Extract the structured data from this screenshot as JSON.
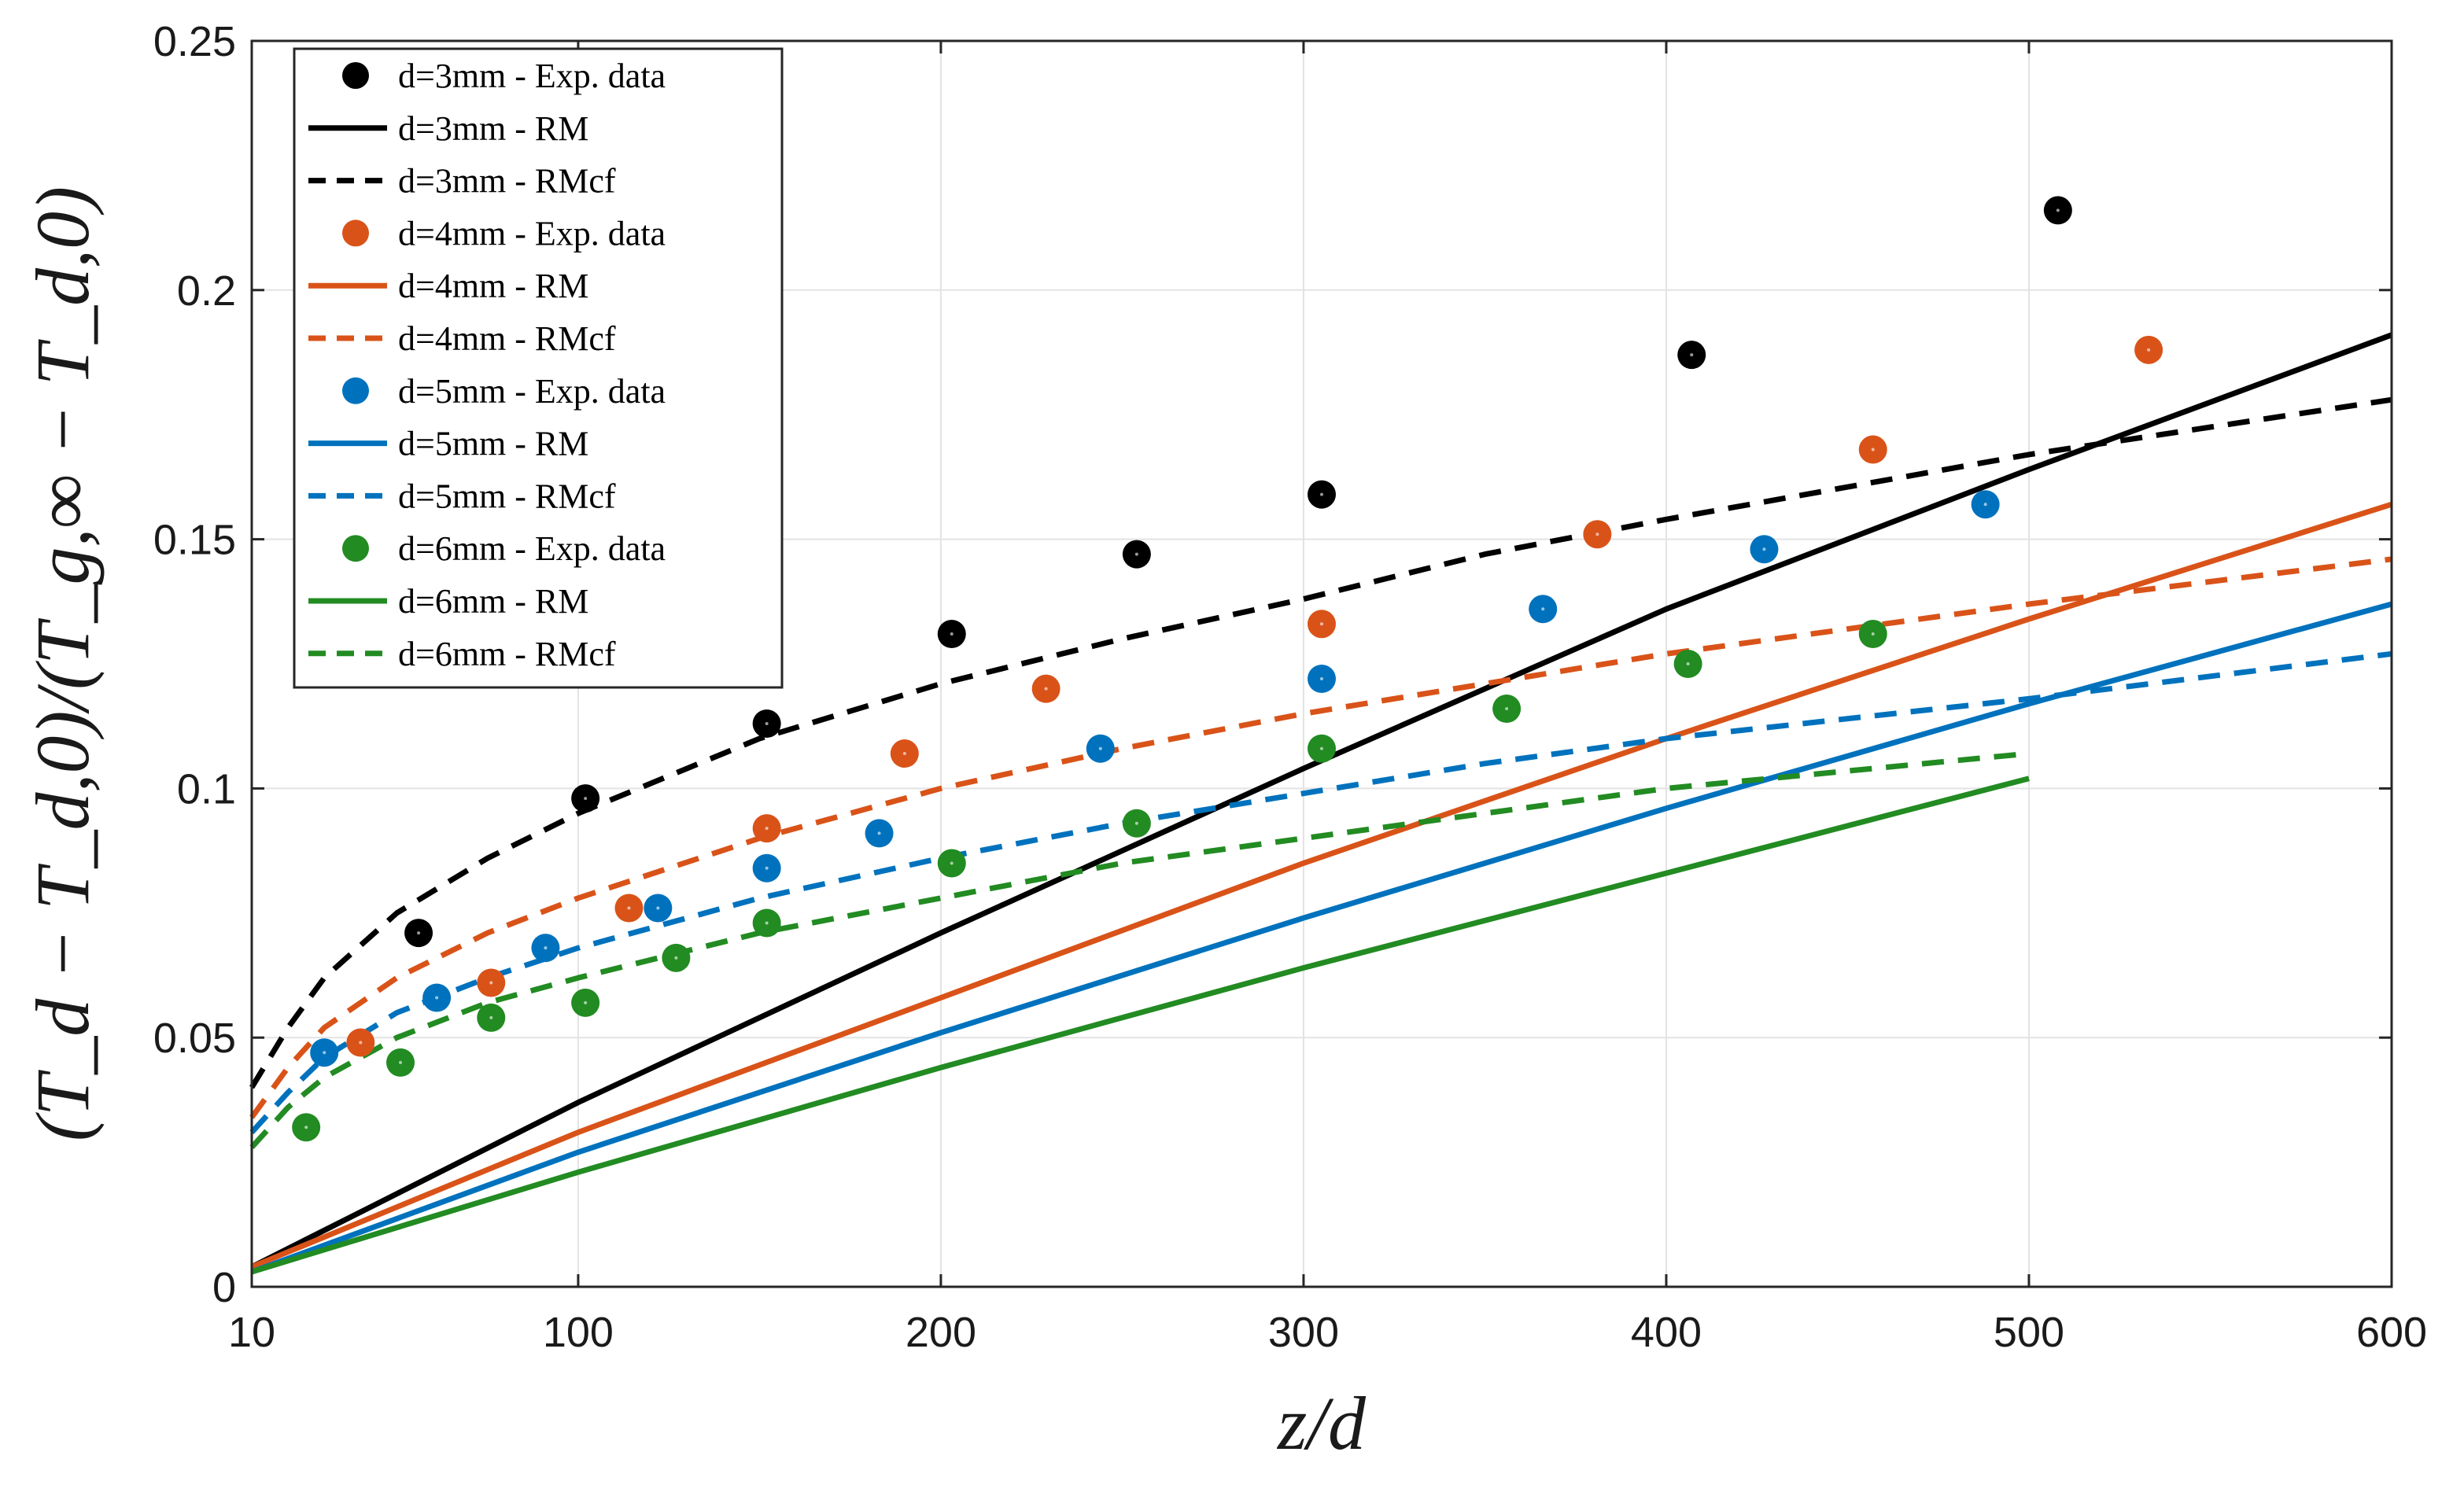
{
  "chart_data": {
    "type": "scatter",
    "title": "",
    "xlabel": "z/d",
    "ylabel": "(T_d − T_d,0)/(T_g,∞ − T_d,0)",
    "xlim": [
      10,
      600
    ],
    "ylim": [
      0,
      0.25
    ],
    "xticks": [
      10,
      100,
      200,
      300,
      400,
      500,
      600
    ],
    "yticks": [
      0,
      0.05,
      0.1,
      0.15,
      0.2,
      0.25
    ],
    "xtick_labels": [
      "10",
      "100",
      "200",
      "300",
      "400",
      "500",
      "600"
    ],
    "ytick_labels": [
      "0",
      "0.05",
      "0.1",
      "0.15",
      "0.2",
      "0.25"
    ],
    "grid": true,
    "legend_position": "top-left",
    "series": [
      {
        "name": "d=3mm - Exp. data",
        "kind": "scatter",
        "color": "#000000",
        "x": [
          56,
          102,
          152,
          203,
          254,
          305,
          407,
          508
        ],
        "y": [
          0.071,
          0.098,
          0.113,
          0.131,
          0.147,
          0.159,
          0.187,
          0.216
        ]
      },
      {
        "name": "d=3mm - RM",
        "kind": "line",
        "dash": "solid",
        "color": "#000000",
        "x": [
          10,
          100,
          200,
          300,
          400,
          500,
          600
        ],
        "y": [
          0.004,
          0.037,
          0.071,
          0.104,
          0.136,
          0.164,
          0.191
        ]
      },
      {
        "name": "d=3mm - RMcf",
        "kind": "line",
        "dash": "dashed",
        "color": "#000000",
        "x": [
          10,
          20,
          30,
          50,
          75,
          100,
          150,
          200,
          250,
          300,
          350,
          400,
          500,
          600
        ],
        "y": [
          0.04,
          0.052,
          0.062,
          0.075,
          0.086,
          0.095,
          0.11,
          0.121,
          0.13,
          0.138,
          0.147,
          0.154,
          0.167,
          0.178
        ]
      },
      {
        "name": "d=4mm - Exp. data",
        "kind": "scatter",
        "color": "#D95319",
        "x": [
          40,
          76,
          114,
          152,
          190,
          229,
          305,
          381,
          457,
          533
        ],
        "y": [
          0.049,
          0.061,
          0.076,
          0.092,
          0.107,
          0.12,
          0.133,
          0.151,
          0.168,
          0.188
        ]
      },
      {
        "name": "d=4mm - RM",
        "kind": "line",
        "dash": "solid",
        "color": "#D95319",
        "x": [
          10,
          100,
          200,
          300,
          400,
          500,
          600
        ],
        "y": [
          0.004,
          0.031,
          0.058,
          0.085,
          0.11,
          0.134,
          0.157
        ]
      },
      {
        "name": "d=4mm - RMcf",
        "kind": "line",
        "dash": "dashed",
        "color": "#D95319",
        "x": [
          10,
          20,
          30,
          50,
          75,
          100,
          150,
          200,
          250,
          300,
          350,
          400,
          500,
          600
        ],
        "y": [
          0.034,
          0.044,
          0.052,
          0.062,
          0.071,
          0.078,
          0.09,
          0.1,
          0.108,
          0.115,
          0.121,
          0.127,
          0.137,
          0.146
        ]
      },
      {
        "name": "d=5mm - Exp. data",
        "kind": "scatter",
        "color": "#0072BD",
        "x": [
          30,
          61,
          91,
          122,
          152,
          183,
          244,
          305,
          366,
          427,
          488
        ],
        "y": [
          0.047,
          0.058,
          0.068,
          0.076,
          0.084,
          0.091,
          0.108,
          0.122,
          0.136,
          0.148,
          0.157
        ]
      },
      {
        "name": "d=5mm - RM",
        "kind": "line",
        "dash": "solid",
        "color": "#0072BD",
        "x": [
          10,
          100,
          200,
          300,
          400,
          500,
          600
        ],
        "y": [
          0.003,
          0.027,
          0.051,
          0.074,
          0.096,
          0.117,
          0.137
        ]
      },
      {
        "name": "d=5mm - RMcf",
        "kind": "line",
        "dash": "dashed",
        "color": "#0072BD",
        "x": [
          10,
          20,
          30,
          50,
          75,
          100,
          150,
          200,
          250,
          300,
          350,
          400,
          500,
          600
        ],
        "y": [
          0.031,
          0.039,
          0.046,
          0.055,
          0.062,
          0.068,
          0.078,
          0.086,
          0.093,
          0.099,
          0.105,
          0.11,
          0.118,
          0.127
        ]
      },
      {
        "name": "d=6mm - Exp. data",
        "kind": "scatter",
        "color": "#228B22",
        "x": [
          25,
          51,
          76,
          102,
          127,
          152,
          203,
          254,
          305,
          356,
          406,
          457
        ],
        "y": [
          0.032,
          0.045,
          0.054,
          0.057,
          0.066,
          0.073,
          0.085,
          0.093,
          0.108,
          0.116,
          0.125,
          0.131
        ]
      },
      {
        "name": "d=6mm - RM",
        "kind": "line",
        "dash": "solid",
        "color": "#228B22",
        "x": [
          10,
          100,
          200,
          300,
          400,
          500
        ],
        "y": [
          0.003,
          0.023,
          0.044,
          0.064,
          0.083,
          0.102
        ]
      },
      {
        "name": "d=6mm - RMcf",
        "kind": "line",
        "dash": "dashed",
        "color": "#228B22",
        "x": [
          10,
          20,
          30,
          50,
          75,
          100,
          150,
          200,
          250,
          300,
          350,
          400,
          500
        ],
        "y": [
          0.028,
          0.036,
          0.042,
          0.05,
          0.057,
          0.062,
          0.071,
          0.078,
          0.085,
          0.09,
          0.095,
          0.1,
          0.107
        ]
      }
    ]
  }
}
